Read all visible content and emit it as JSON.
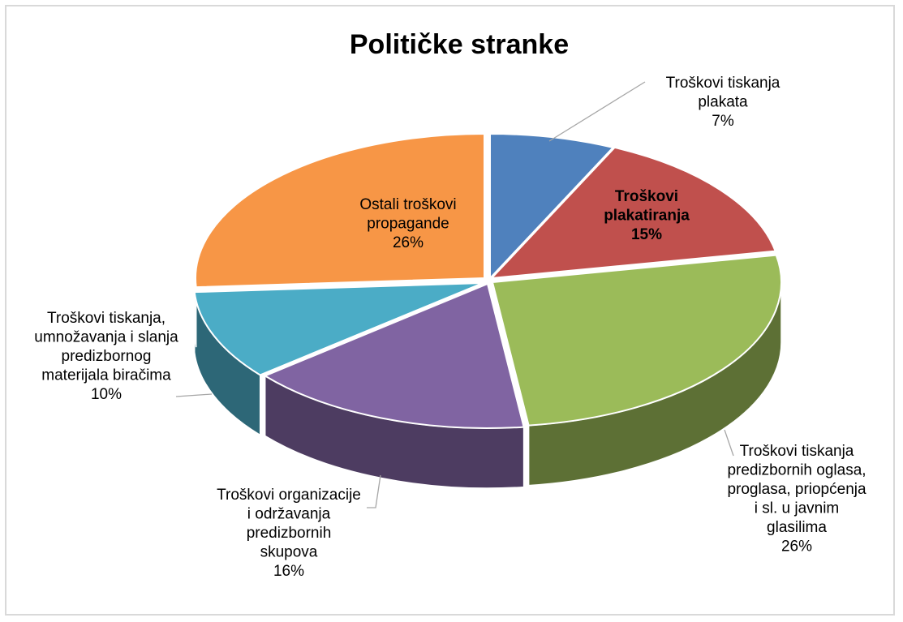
{
  "chart_data": {
    "type": "pie",
    "style": "3d-exploded-perspective",
    "title": "Političke stranke",
    "slices": [
      {
        "lines": [
          "Troškovi  tiskanja",
          "plakata"
        ],
        "value": 7,
        "value_label": "7%",
        "color": "#4f81bd",
        "bold": false
      },
      {
        "lines": [
          "Troškovi",
          "plakatiranja"
        ],
        "value": 15,
        "value_label": "15%",
        "color": "#c0504d",
        "bold": true
      },
      {
        "lines": [
          "Troškovi tiskanja",
          "predizbornih oglasa,",
          "proglasa, priopćenja",
          "i sl. u javnim",
          "glasilima"
        ],
        "value": 26,
        "value_label": "26%",
        "color": "#9bbb59",
        "bold": false
      },
      {
        "lines": [
          "Troškovi organizacije",
          "i održavanja",
          "predizbornih",
          "skupova"
        ],
        "value": 16,
        "value_label": "16%",
        "color": "#8064a2",
        "bold": false
      },
      {
        "lines": [
          "Troškovi tiskanja,",
          "umnožavanja i slanja",
          "predizbornog",
          "materijala biračima"
        ],
        "value": 10,
        "value_label": "10%",
        "color": "#4bacc6",
        "bold": false
      },
      {
        "lines": [
          "Ostali troškovi",
          "propagande"
        ],
        "value": 26,
        "value_label": "26%",
        "color": "#f79646",
        "bold": false
      }
    ]
  }
}
